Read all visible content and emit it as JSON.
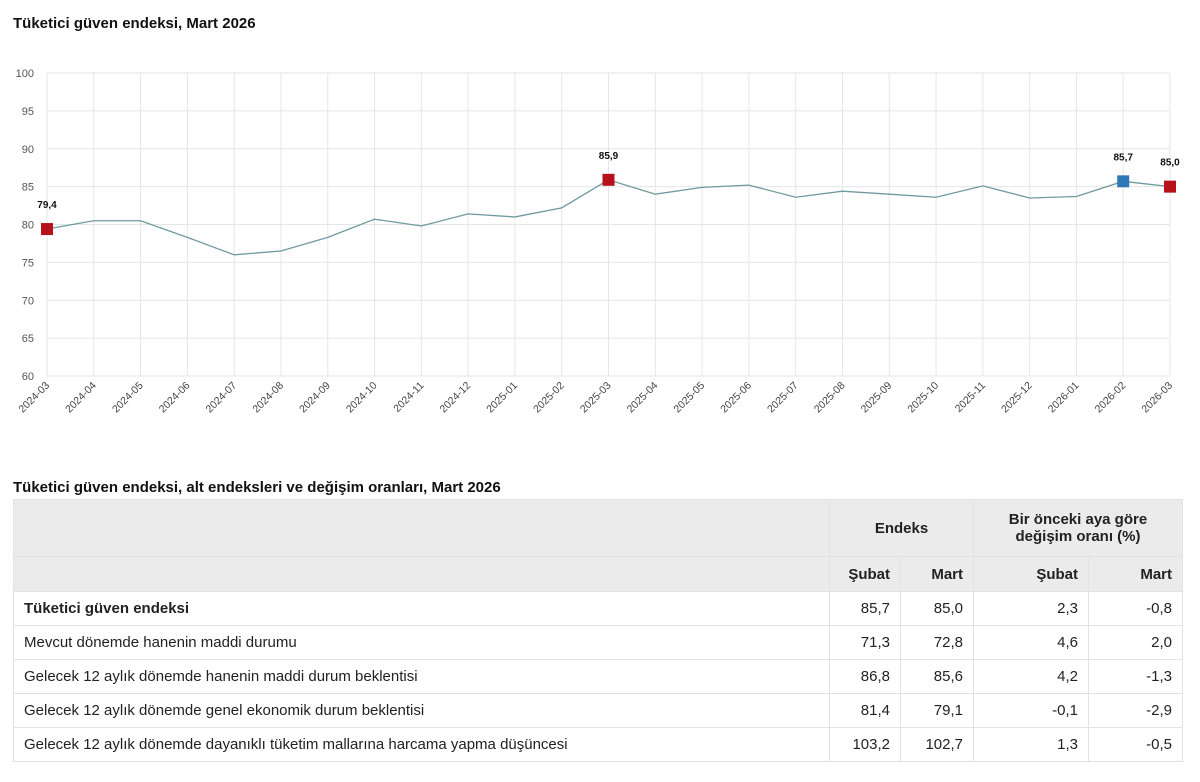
{
  "chart_data": {
    "type": "line",
    "title": "Tüketici güven endeksi, Mart 2026",
    "categories": [
      "2024-03",
      "2024-04",
      "2024-05",
      "2024-06",
      "2024-07",
      "2024-08",
      "2024-09",
      "2024-10",
      "2024-11",
      "2024-12",
      "2025-01",
      "2025-02",
      "2025-03",
      "2025-04",
      "2025-05",
      "2025-06",
      "2025-07",
      "2025-08",
      "2025-09",
      "2025-10",
      "2025-11",
      "2025-12",
      "2026-01",
      "2026-02",
      "2026-03"
    ],
    "values": [
      79.4,
      80.5,
      80.5,
      78.3,
      76.0,
      76.5,
      78.3,
      80.7,
      79.8,
      81.4,
      81.0,
      82.2,
      85.9,
      84.0,
      84.9,
      85.2,
      83.6,
      84.4,
      84.0,
      83.6,
      85.1,
      83.5,
      83.7,
      85.7,
      85.0
    ],
    "ylim": [
      60,
      100
    ],
    "yticks": [
      60,
      65,
      70,
      75,
      80,
      85,
      90,
      95,
      100
    ],
    "grid": true,
    "line_color": "#6f9aa0",
    "highlighted_points": [
      {
        "x": "2024-03",
        "label": "79,4",
        "color": "#b5121b"
      },
      {
        "x": "2025-03",
        "label": "85,9",
        "color": "#b5121b"
      },
      {
        "x": "2026-02",
        "label": "85,7",
        "color": "#2e78b7"
      },
      {
        "x": "2026-03",
        "label": "85,0",
        "color": "#b5121b"
      }
    ]
  },
  "table": {
    "title": "Tüketici güven endeksi, alt endeksleri ve değişim oranları, Mart 2026",
    "group_headers": [
      "Endeks",
      "Bir önceki aya göre değişim oranı (%)"
    ],
    "sub_headers": [
      "Şubat",
      "Mart",
      "Şubat",
      "Mart"
    ],
    "rows": [
      {
        "label": "Tüketici güven endeksi",
        "cells": [
          "85,7",
          "85,0",
          "2,3",
          "-0,8"
        ]
      },
      {
        "label": "Mevcut dönemde hanenin maddi durumu",
        "cells": [
          "71,3",
          "72,8",
          "4,6",
          "2,0"
        ]
      },
      {
        "label": "Gelecek 12 aylık dönemde hanenin maddi durum beklentisi",
        "cells": [
          "86,8",
          "85,6",
          "4,2",
          "-1,3"
        ]
      },
      {
        "label": "Gelecek 12 aylık dönemde genel ekonomik durum beklentisi",
        "cells": [
          "81,4",
          "79,1",
          "-0,1",
          "-2,9"
        ]
      },
      {
        "label": "Gelecek 12 aylık dönemde dayanıklı tüketim mallarına harcama yapma düşüncesi",
        "cells": [
          "103,2",
          "102,7",
          "1,3",
          "-0,5"
        ]
      }
    ]
  }
}
